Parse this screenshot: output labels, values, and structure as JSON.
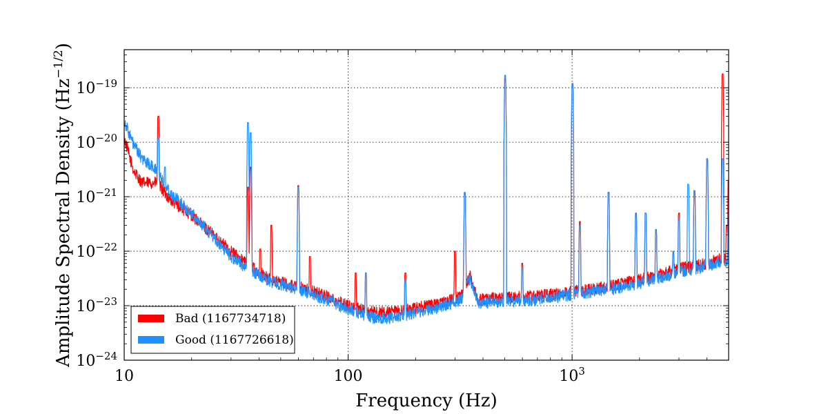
{
  "chart_data": {
    "type": "line",
    "title": "",
    "xlabel": "Frequency (Hz)",
    "ylabel": "Amplitude Spectral Density (Hz",
    "ylabel_exponent": "−1/2",
    "ylabel_suffix": ")",
    "x_scale": "log",
    "y_scale": "log",
    "xlim": [
      10,
      5000
    ],
    "ylim": [
      1e-24,
      5e-19
    ],
    "grid": true,
    "legend_position": "lower-left",
    "x_ticks": [
      {
        "value": 10,
        "label": "10"
      },
      {
        "value": 100,
        "label": "100"
      },
      {
        "value": 1000,
        "label": "10",
        "exponent": "3"
      }
    ],
    "y_ticks": [
      {
        "value": 1e-24,
        "label": "10",
        "exponent": "−24"
      },
      {
        "value": 1e-23,
        "label": "10",
        "exponent": "−23"
      },
      {
        "value": 1e-22,
        "label": "10",
        "exponent": "−22"
      },
      {
        "value": 1e-21,
        "label": "10",
        "exponent": "−21"
      },
      {
        "value": 1e-20,
        "label": "10",
        "exponent": "−20"
      },
      {
        "value": 1e-19,
        "label": "10",
        "exponent": "−19"
      }
    ],
    "series": [
      {
        "name": "Bad (1167734718)",
        "color": "#ff0000",
        "baseline": [
          [
            10,
            1.2e-20
          ],
          [
            11,
            3e-21
          ],
          [
            12,
            1.8e-21
          ],
          [
            14,
            1.8e-21
          ],
          [
            16,
            9e-22
          ],
          [
            20,
            4.5e-22
          ],
          [
            25,
            2e-22
          ],
          [
            30,
            1e-22
          ],
          [
            35,
            6e-23
          ],
          [
            45,
            3e-23
          ],
          [
            60,
            2.2e-23
          ],
          [
            80,
            1.5e-23
          ],
          [
            100,
            1e-23
          ],
          [
            130,
            7.5e-24
          ],
          [
            160,
            7.5e-24
          ],
          [
            200,
            9e-24
          ],
          [
            260,
            1.1e-23
          ],
          [
            320,
            1.5e-23
          ],
          [
            350,
            3.5e-23
          ],
          [
            380,
            1.3e-23
          ],
          [
            500,
            1.4e-23
          ],
          [
            700,
            1.5e-23
          ],
          [
            1000,
            1.8e-23
          ],
          [
            1500,
            2.3e-23
          ],
          [
            2000,
            3e-23
          ],
          [
            2500,
            3.8e-23
          ],
          [
            3000,
            4.8e-23
          ],
          [
            4000,
            6e-23
          ],
          [
            5000,
            8e-23
          ]
        ],
        "peaks": [
          [
            14.2,
            3e-20
          ],
          [
            35.7,
            1.5e-21
          ],
          [
            36.7,
            3.5e-21
          ],
          [
            40.5,
            1.1e-22
          ],
          [
            45.4,
            3e-22
          ],
          [
            59.9,
            1.6e-21
          ],
          [
            67.5,
            8e-23
          ],
          [
            108,
            4e-23
          ],
          [
            120,
            4e-23
          ],
          [
            180,
            4e-23
          ],
          [
            300,
            1e-22
          ],
          [
            331.9,
            1.2e-21
          ],
          [
            502.6,
            1.5e-19
          ],
          [
            599,
            6e-23
          ],
          [
            1004,
            1.2e-19
          ],
          [
            1083,
            3.5e-22
          ],
          [
            1455,
            1.2e-21
          ],
          [
            1928,
            5e-22
          ],
          [
            2130,
            5e-22
          ],
          [
            2370,
            2.5e-22
          ],
          [
            2830,
            1e-22
          ],
          [
            3000,
            5e-22
          ],
          [
            3520,
            1.3e-21
          ],
          [
            4010,
            5e-21
          ],
          [
            4700,
            1.8e-19
          ],
          [
            4900,
            3e-22
          ],
          [
            5000,
            2e-21
          ]
        ]
      },
      {
        "name": "Good (1167726618)",
        "color": "#1e90ff",
        "baseline": [
          [
            10,
            2.5e-20
          ],
          [
            11,
            9e-21
          ],
          [
            12,
            5e-21
          ],
          [
            14,
            3e-21
          ],
          [
            16,
            1.2e-21
          ],
          [
            20,
            5e-22
          ],
          [
            25,
            1.8e-22
          ],
          [
            30,
            8e-23
          ],
          [
            35,
            5e-23
          ],
          [
            45,
            2.8e-23
          ],
          [
            60,
            2e-23
          ],
          [
            80,
            1.3e-23
          ],
          [
            100,
            8.5e-24
          ],
          [
            130,
            6e-24
          ],
          [
            160,
            6e-24
          ],
          [
            200,
            7.5e-24
          ],
          [
            260,
            9.5e-24
          ],
          [
            320,
            1.3e-23
          ],
          [
            350,
            3.2e-23
          ],
          [
            380,
            1.1e-23
          ],
          [
            500,
            1.2e-23
          ],
          [
            700,
            1.3e-23
          ],
          [
            1000,
            1.6e-23
          ],
          [
            1500,
            2e-23
          ],
          [
            2000,
            2.6e-23
          ],
          [
            2500,
            3.3e-23
          ],
          [
            3000,
            4.2e-23
          ],
          [
            4000,
            5.3e-23
          ],
          [
            5000,
            7e-23
          ]
        ],
        "peaks": [
          [
            14.2,
            1.2e-20
          ],
          [
            15.2,
            3.5e-21
          ],
          [
            35.7,
            2.3e-20
          ],
          [
            36.7,
            1.5e-20
          ],
          [
            59.9,
            1.5e-21
          ],
          [
            120,
            4e-23
          ],
          [
            180,
            3e-23
          ],
          [
            331.9,
            1.2e-21
          ],
          [
            502.6,
            1.7e-19
          ],
          [
            599,
            5e-23
          ],
          [
            1004,
            1.2e-19
          ],
          [
            1083,
            3e-22
          ],
          [
            1455,
            1.2e-21
          ],
          [
            1928,
            5e-22
          ],
          [
            2130,
            5e-22
          ],
          [
            2370,
            2.5e-22
          ],
          [
            2830,
            1e-22
          ],
          [
            3000,
            4e-22
          ],
          [
            3300,
            1.7e-21
          ],
          [
            3520,
            1.3e-21
          ],
          [
            4010,
            5e-21
          ],
          [
            4700,
            5e-21
          ],
          [
            5000,
            5e-22
          ]
        ]
      }
    ]
  }
}
